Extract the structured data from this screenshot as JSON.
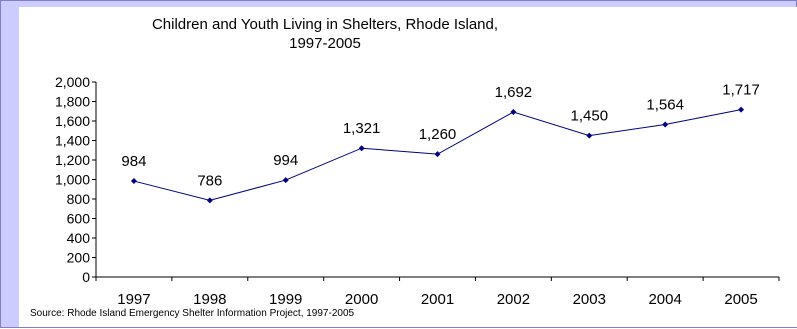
{
  "chart_data": {
    "type": "line",
    "title_lines": [
      "Children and Youth Living in Shelters, Rhode Island,",
      "1997-2005"
    ],
    "categories": [
      "1997",
      "1998",
      "1999",
      "2000",
      "2001",
      "2002",
      "2003",
      "2004",
      "2005"
    ],
    "values": [
      984,
      786,
      994,
      1321,
      1260,
      1692,
      1450,
      1564,
      1717
    ],
    "data_labels": [
      "984",
      "786",
      "994",
      "1,321",
      "1,260",
      "1,692",
      "1,450",
      "1,564",
      "1,717"
    ],
    "ylim": [
      0,
      2000
    ],
    "yticks": [
      0,
      200,
      400,
      600,
      800,
      1000,
      1200,
      1400,
      1600,
      1800,
      2000
    ],
    "ytick_labels": [
      "0",
      "200",
      "400",
      "600",
      "800",
      "1,000",
      "1,200",
      "1,400",
      "1,600",
      "1,800",
      "2,000"
    ],
    "grid": false,
    "legend": "none",
    "line_color": "#000080",
    "source": "Source: Rhode Island Emergency Shelter Information Project, 1997-2005"
  }
}
